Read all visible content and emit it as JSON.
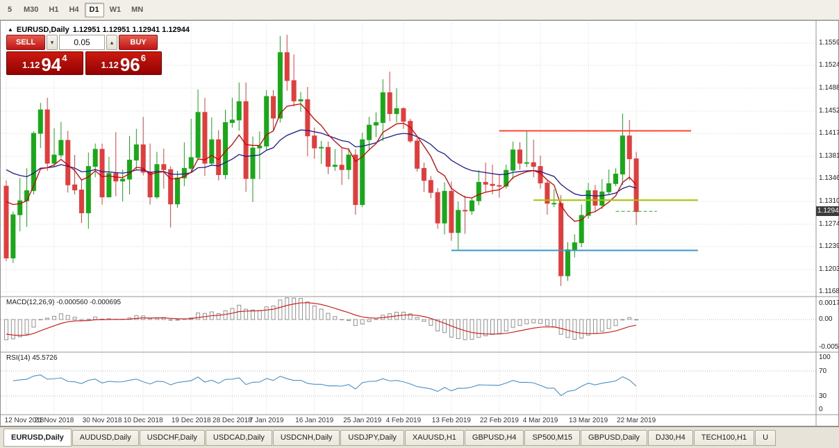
{
  "toolbar": {
    "timeframes": [
      "5",
      "M30",
      "H1",
      "H4",
      "D1",
      "W1",
      "MN"
    ],
    "active_timeframe": "D1"
  },
  "icons": {
    "collapse": "▲",
    "volume_down": "▾",
    "volume_up": "▴"
  },
  "chart": {
    "symbol_title": "EURUSD,Daily",
    "ohlc_text": "1.12951 1.12951 1.12941 1.12944",
    "current_price_label": "1.12944",
    "price_axis_labels": [
      "1.15590",
      "1.15240",
      "1.14880",
      "1.14520",
      "1.14170",
      "1.13810",
      "1.13460",
      "1.13100",
      "1.12740",
      "1.12390",
      "1.12030",
      "1.11680"
    ]
  },
  "trade_panel": {
    "sell_label": "SELL",
    "buy_label": "BUY",
    "volume_value": "0.05",
    "sell_quote": {
      "prefix": "1.12",
      "big": "94",
      "sup": "4"
    },
    "buy_quote": {
      "prefix": "1.12",
      "big": "96",
      "sup": "6"
    }
  },
  "macd_panel": {
    "label": "MACD(12,26,9) -0.000560 -0.000695",
    "axis_labels": [
      "0.00177",
      "0.00",
      "-0.00566"
    ]
  },
  "rsi_panel": {
    "label": "RSI(14) 45.5726",
    "axis_labels": [
      "100",
      "70",
      "30",
      "0"
    ]
  },
  "tabs": [
    "EURUSD,Daily",
    "AUDUSD,Daily",
    "USDCHF,Daily",
    "USDCAD,Daily",
    "USDCNH,Daily",
    "USDJPY,Daily",
    "XAUUSD,H1",
    "GBPUSD,H4",
    "SP500,M15",
    "GBPUSD,Daily",
    "DJ30,H4",
    "TECH100,H1",
    "U"
  ],
  "active_tab": "EURUSD,Daily",
  "colors": {
    "up_candle": "#18a818",
    "down_candle": "#e23d3d",
    "ma_fast": "#cc0000",
    "ma_slow": "#1a1a8c",
    "resistance_line": "#ff4532",
    "pivot_line": "#a8c400",
    "support_line": "#3a97c8",
    "macd_histogram": "#909090",
    "macd_signal": "#cc2222",
    "rsi_line": "#4a90c4",
    "grid": "#d9d9d9",
    "separator": "#9a968c",
    "bid_line": "#28a428"
  },
  "chart_data": {
    "type": "candlestick",
    "symbol": "EURUSD",
    "timeframe": "Daily",
    "price_range": [
      1.1168,
      1.1559
    ],
    "date_ticks": [
      [
        "12 Nov 2018",
        0
      ],
      [
        "21 Nov 2018",
        7
      ],
      [
        "30 Nov 2018",
        14
      ],
      [
        "10 Dec 2018",
        20
      ],
      [
        "19 Dec 2018",
        27
      ],
      [
        "28 Dec 2018",
        33
      ],
      [
        "7 Jan 2019",
        38
      ],
      [
        "16 Jan 2019",
        45
      ],
      [
        "25 Jan 2019",
        52
      ],
      [
        "4 Feb 2019",
        58
      ],
      [
        "13 Feb 2019",
        65
      ],
      [
        "22 Feb 2019",
        72
      ],
      [
        "4 Mar 2019",
        78
      ],
      [
        "13 Mar 2019",
        85
      ],
      [
        "22 Mar 2019",
        92
      ]
    ],
    "candles_ohlc": [
      [
        1.1334,
        1.1343,
        1.1216,
        1.1221
      ],
      [
        1.1221,
        1.1294,
        1.1213,
        1.1289
      ],
      [
        1.1289,
        1.1347,
        1.1263,
        1.1311
      ],
      [
        1.1311,
        1.1362,
        1.127,
        1.1327
      ],
      [
        1.1327,
        1.142,
        1.1321,
        1.1417
      ],
      [
        1.1417,
        1.1465,
        1.1394,
        1.1454
      ],
      [
        1.1454,
        1.1473,
        1.1358,
        1.137
      ],
      [
        1.137,
        1.1425,
        1.1364,
        1.1383
      ],
      [
        1.1383,
        1.1435,
        1.1378,
        1.1406
      ],
      [
        1.1406,
        1.1421,
        1.1324,
        1.1336
      ],
      [
        1.1336,
        1.1383,
        1.1321,
        1.1328
      ],
      [
        1.1328,
        1.1344,
        1.1276,
        1.1292
      ],
      [
        1.1292,
        1.1387,
        1.1267,
        1.1365
      ],
      [
        1.1365,
        1.1401,
        1.1348,
        1.1392
      ],
      [
        1.1392,
        1.1401,
        1.1305,
        1.1317
      ],
      [
        1.1317,
        1.138,
        1.1317,
        1.1354
      ],
      [
        1.1354,
        1.1419,
        1.1318,
        1.1342
      ],
      [
        1.1342,
        1.136,
        1.131,
        1.1345
      ],
      [
        1.1345,
        1.1413,
        1.1321,
        1.1375
      ],
      [
        1.1375,
        1.1424,
        1.136,
        1.1399
      ],
      [
        1.1399,
        1.1443,
        1.1351,
        1.1356
      ],
      [
        1.1356,
        1.1401,
        1.1305,
        1.1317
      ],
      [
        1.1317,
        1.1388,
        1.1314,
        1.1368
      ],
      [
        1.1368,
        1.1393,
        1.133,
        1.136
      ],
      [
        1.136,
        1.1365,
        1.1269,
        1.1306
      ],
      [
        1.1306,
        1.1358,
        1.13,
        1.1347
      ],
      [
        1.1347,
        1.1403,
        1.1334,
        1.1362
      ],
      [
        1.1362,
        1.144,
        1.1358,
        1.1379
      ],
      [
        1.1379,
        1.1486,
        1.1375,
        1.145
      ],
      [
        1.145,
        1.1473,
        1.135,
        1.137
      ],
      [
        1.137,
        1.1442,
        1.1366,
        1.1407
      ],
      [
        1.1407,
        1.1422,
        1.1343,
        1.1352
      ],
      [
        1.1352,
        1.1454,
        1.1345,
        1.1434
      ],
      [
        1.1434,
        1.1473,
        1.1426,
        1.1438
      ],
      [
        1.1438,
        1.1497,
        1.1421,
        1.1467
      ],
      [
        1.1467,
        1.1497,
        1.1325,
        1.1346
      ],
      [
        1.1346,
        1.1412,
        1.1309,
        1.1394
      ],
      [
        1.1394,
        1.142,
        1.1345,
        1.1397
      ],
      [
        1.1397,
        1.1485,
        1.139,
        1.1475
      ],
      [
        1.1475,
        1.1485,
        1.1422,
        1.1441
      ],
      [
        1.1441,
        1.157,
        1.1434,
        1.1544
      ],
      [
        1.1544,
        1.1572,
        1.1484,
        1.15
      ],
      [
        1.15,
        1.1541,
        1.1459,
        1.1468
      ],
      [
        1.1468,
        1.1482,
        1.1451,
        1.147
      ],
      [
        1.147,
        1.149,
        1.1381,
        1.1413
      ],
      [
        1.1413,
        1.1426,
        1.1377,
        1.1394
      ],
      [
        1.1394,
        1.1405,
        1.1369,
        1.1395
      ],
      [
        1.1395,
        1.1404,
        1.1353,
        1.1365
      ],
      [
        1.1365,
        1.1392,
        1.1358,
        1.1367
      ],
      [
        1.1367,
        1.1394,
        1.1336,
        1.136
      ],
      [
        1.136,
        1.1394,
        1.1345,
        1.1383
      ],
      [
        1.1383,
        1.1392,
        1.1289,
        1.1305
      ],
      [
        1.1305,
        1.1418,
        1.1301,
        1.1407
      ],
      [
        1.1407,
        1.1443,
        1.139,
        1.143
      ],
      [
        1.143,
        1.145,
        1.1411,
        1.1434
      ],
      [
        1.1434,
        1.1502,
        1.1405,
        1.1481
      ],
      [
        1.1481,
        1.1514,
        1.1436,
        1.1448
      ],
      [
        1.1448,
        1.1488,
        1.1434,
        1.1456
      ],
      [
        1.1456,
        1.1458,
        1.1424,
        1.1436
      ],
      [
        1.1436,
        1.144,
        1.1402,
        1.1405
      ],
      [
        1.1405,
        1.141,
        1.1357,
        1.1362
      ],
      [
        1.1362,
        1.1371,
        1.1325,
        1.1343
      ],
      [
        1.1343,
        1.135,
        1.1315,
        1.1324
      ],
      [
        1.1324,
        1.1331,
        1.1267,
        1.1276
      ],
      [
        1.1276,
        1.134,
        1.1258,
        1.1326
      ],
      [
        1.1326,
        1.1341,
        1.1248,
        1.1261
      ],
      [
        1.1261,
        1.131,
        1.1234,
        1.1296
      ],
      [
        1.1296,
        1.1319,
        1.1259,
        1.1295
      ],
      [
        1.1295,
        1.1316,
        1.1289,
        1.1311
      ],
      [
        1.1311,
        1.1359,
        1.1304,
        1.134
      ],
      [
        1.134,
        1.1371,
        1.1324,
        1.1337
      ],
      [
        1.1337,
        1.1368,
        1.1321,
        1.1335
      ],
      [
        1.1335,
        1.1353,
        1.1316,
        1.1334
      ],
      [
        1.1334,
        1.1368,
        1.133,
        1.1359
      ],
      [
        1.1359,
        1.1404,
        1.1345,
        1.1391
      ],
      [
        1.1391,
        1.1403,
        1.136,
        1.137
      ],
      [
        1.137,
        1.142,
        1.1364,
        1.1371
      ],
      [
        1.1371,
        1.1407,
        1.1348,
        1.1365
      ],
      [
        1.1365,
        1.1382,
        1.133,
        1.1339
      ],
      [
        1.1339,
        1.1344,
        1.1289,
        1.1307
      ],
      [
        1.1307,
        1.1329,
        1.1301,
        1.1307
      ],
      [
        1.1307,
        1.132,
        1.1177,
        1.1193
      ],
      [
        1.1193,
        1.1246,
        1.1185,
        1.1234
      ],
      [
        1.1234,
        1.1258,
        1.1222,
        1.1245
      ],
      [
        1.1245,
        1.1305,
        1.1238,
        1.1288
      ],
      [
        1.1288,
        1.1339,
        1.1283,
        1.1327
      ],
      [
        1.1327,
        1.1336,
        1.1294,
        1.1304
      ],
      [
        1.1304,
        1.1345,
        1.1298,
        1.1325
      ],
      [
        1.1325,
        1.136,
        1.1321,
        1.1338
      ],
      [
        1.1338,
        1.1362,
        1.1334,
        1.1353
      ],
      [
        1.1353,
        1.1448,
        1.1336,
        1.1413
      ],
      [
        1.1413,
        1.1438,
        1.1343,
        1.1377
      ],
      [
        1.1377,
        1.1388,
        1.1273,
        1.1294
      ]
    ],
    "horizontal_lines": [
      {
        "price": 1.1421,
        "start_index": 72,
        "end_index": 100,
        "color_key": "resistance_line"
      },
      {
        "price": 1.1312,
        "start_index": 77,
        "end_index": 101,
        "color_key": "pivot_line"
      },
      {
        "price": 1.1233,
        "start_index": 65,
        "end_index": 101,
        "color_key": "support_line"
      }
    ],
    "bid_price": 1.12944,
    "indicators": {
      "ma_fast_period": 8,
      "ma_slow_period": 24,
      "macd": [
        12,
        26,
        9
      ],
      "rsi_period": 14,
      "rsi_levels": [
        70,
        30
      ]
    }
  }
}
